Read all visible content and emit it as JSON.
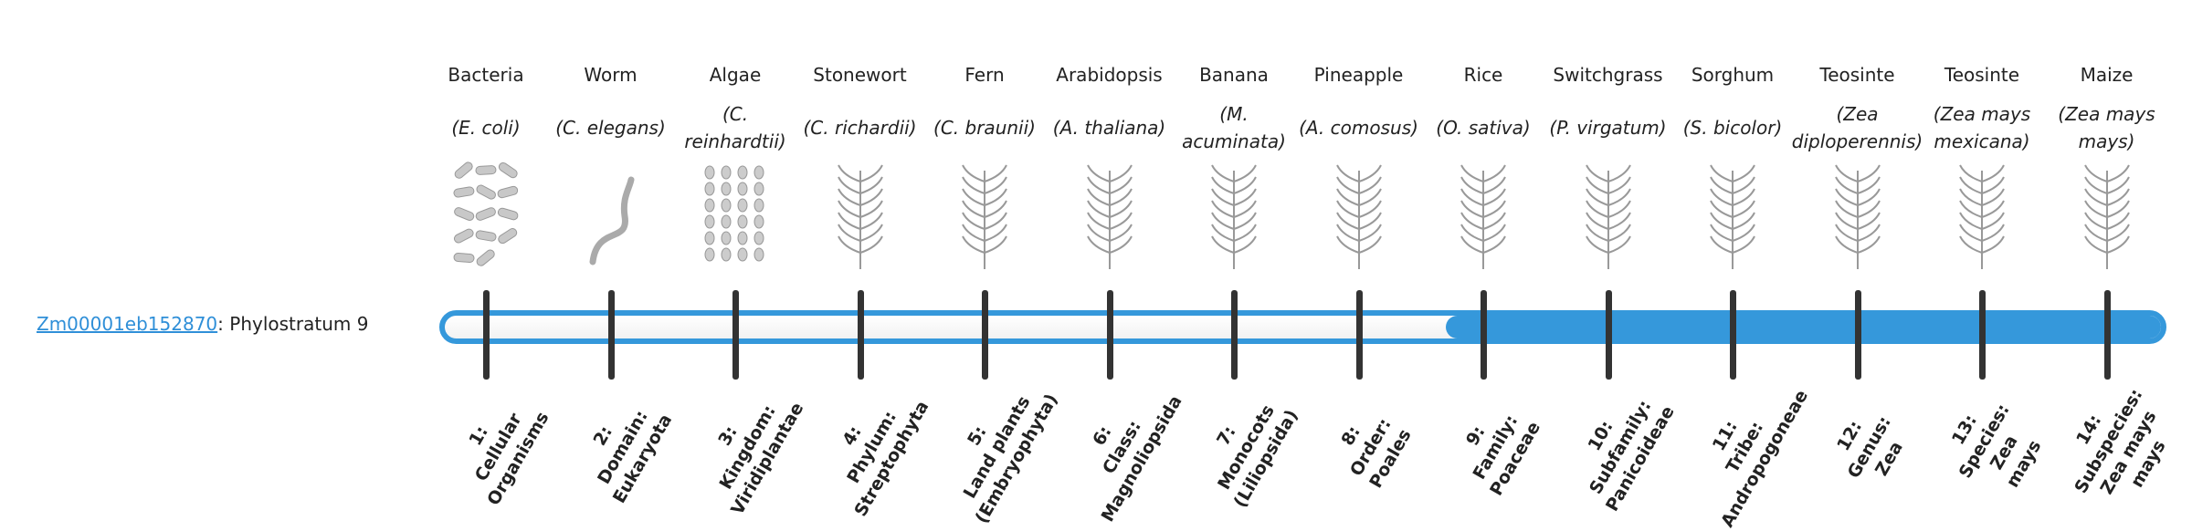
{
  "gene": {
    "id": "Zm00001eb152870",
    "suffix": ": Phylostratum 9"
  },
  "phylostratum_value": 9,
  "phylostratum_total": 14,
  "colors": {
    "bar": "#3598db",
    "link": "#2f8fd8",
    "tick": "#333333"
  },
  "columns": [
    {
      "common": "Bacteria",
      "species": "(E. coli)",
      "icon": "bacteria-icon",
      "stratum": "1:\nCellular\nOrganisms"
    },
    {
      "common": "Worm",
      "species": "(C. elegans)",
      "icon": "worm-icon",
      "stratum": "2:\nDomain:\nEukaryota"
    },
    {
      "common": "Algae",
      "species": "(C. reinhardtii)",
      "icon": "algae-icon",
      "stratum": "3:\nKingdom:\nViridiplantae"
    },
    {
      "common": "Stonewort",
      "species": "(C. richardii)",
      "icon": "stonewort-icon",
      "stratum": "4:\nPhylum:\nStreptophyta"
    },
    {
      "common": "Fern",
      "species": "(C. braunii)",
      "icon": "fern-icon",
      "stratum": "5:\nLand plants\n(Embryophyta)"
    },
    {
      "common": "Arabidopsis",
      "species": "(A. thaliana)",
      "icon": "arabidopsis-icon",
      "stratum": "6:\nClass:\nMagnoliopsida"
    },
    {
      "common": "Banana",
      "species": "(M. acuminata)",
      "icon": "banana-icon",
      "stratum": "7:\nMonocots\n(Liliopsida)"
    },
    {
      "common": "Pineapple",
      "species": "(A. comosus)",
      "icon": "pineapple-icon",
      "stratum": "8:\nOrder:\nPoales"
    },
    {
      "common": "Rice",
      "species": "(O. sativa)",
      "icon": "rice-icon",
      "stratum": "9:\nFamily:\nPoaceae"
    },
    {
      "common": "Switchgrass",
      "species": "(P. virgatum)",
      "icon": "switchgrass-icon",
      "stratum": "10:\nSubfamily:\nPanicoideae"
    },
    {
      "common": "Sorghum",
      "species": "(S. bicolor)",
      "icon": "sorghum-icon",
      "stratum": "11:\nTribe:\nAndropogoneae"
    },
    {
      "common": "Teosinte",
      "species": "(Zea diploperennis)",
      "icon": "teosinte-icon",
      "stratum": "12:\nGenus:\nZea"
    },
    {
      "common": "Teosinte",
      "species": "(Zea mays mexicana)",
      "icon": "teosinte-icon",
      "stratum": "13:\nSpecies:\nZea\nmays"
    },
    {
      "common": "Maize",
      "species": "(Zea mays mays)",
      "icon": "maize-icon",
      "stratum": "14:\nSubspecies:\nZea mays\nmays"
    }
  ]
}
